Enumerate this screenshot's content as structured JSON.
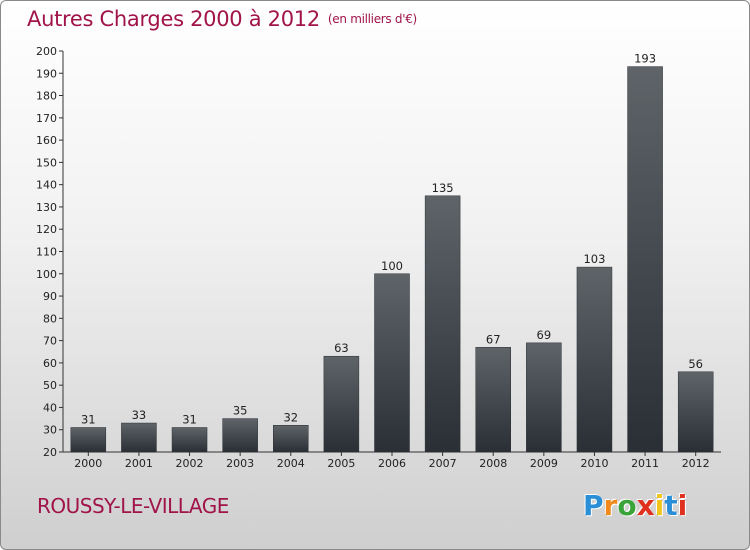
{
  "header": {
    "title": "Autres Charges 2000 à 2012",
    "unit": "(en milliers d'€)"
  },
  "footer": {
    "place": "ROUSSY-LE-VILLAGE",
    "logo": "Proxiti"
  },
  "colors": {
    "accent": "#a0144a",
    "bar_top": "#5f6469",
    "bar_bottom": "#2a2f35"
  },
  "chart_data": {
    "type": "bar",
    "title": "Autres Charges 2000 à 2012",
    "subtitle": "(en milliers d'€)",
    "categories": [
      "2000",
      "2001",
      "2002",
      "2003",
      "2004",
      "2005",
      "2006",
      "2007",
      "2008",
      "2009",
      "2010",
      "2011",
      "2012"
    ],
    "values": [
      31,
      33,
      31,
      35,
      32,
      63,
      100,
      135,
      67,
      69,
      103,
      193,
      56
    ],
    "ylim": [
      20,
      200
    ],
    "ytick_step": 10,
    "xlabel": "",
    "ylabel": "",
    "grid": false,
    "show_value_labels": true
  }
}
